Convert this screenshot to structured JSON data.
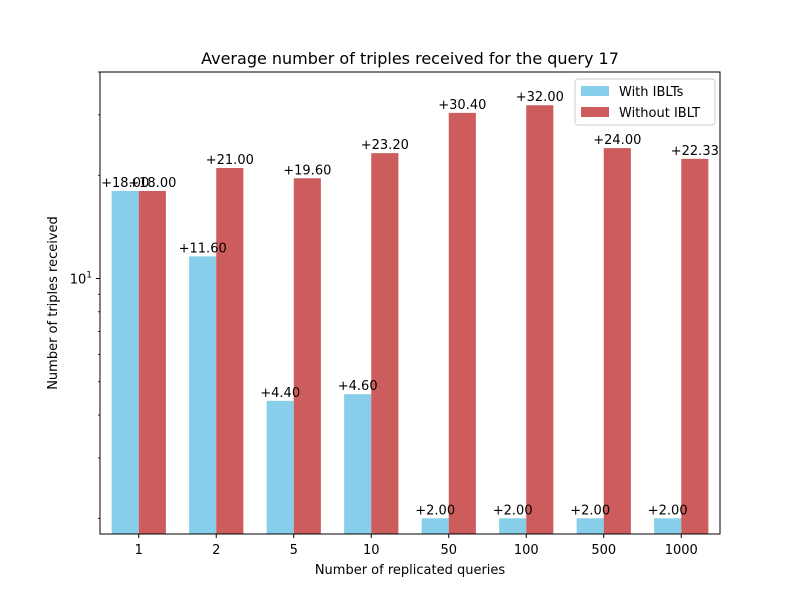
{
  "chart_data": {
    "type": "bar",
    "title": "Average number of triples received for the query 17",
    "xlabel": "Number of replicated queries",
    "ylabel": "Number of triples received",
    "yscale": "log",
    "ylim": [
      1.8,
      40
    ],
    "ytick_label": {
      "base": "10",
      "exp": "1"
    },
    "categories": [
      "1",
      "2",
      "5",
      "10",
      "50",
      "100",
      "500",
      "1000"
    ],
    "series": [
      {
        "name": "With IBLTs",
        "color": "#87CEEB",
        "values": [
          18.0,
          11.6,
          4.4,
          4.6,
          2.0,
          2.0,
          2.0,
          2.0
        ],
        "labels": [
          "+18.00",
          "+11.60",
          "+4.40",
          "+4.60",
          "+2.00",
          "+2.00",
          "+2.00",
          "+2.00"
        ]
      },
      {
        "name": "Without IBLT",
        "color": "#CD5C5C",
        "values": [
          18.0,
          21.0,
          19.6,
          23.2,
          30.4,
          32.0,
          24.0,
          22.33
        ],
        "labels": [
          "+18.00",
          "+21.00",
          "+19.60",
          "+23.20",
          "+30.40",
          "+32.00",
          "+24.00",
          "+22.33"
        ]
      }
    ],
    "legend_position": "top-right",
    "grid": false
  }
}
